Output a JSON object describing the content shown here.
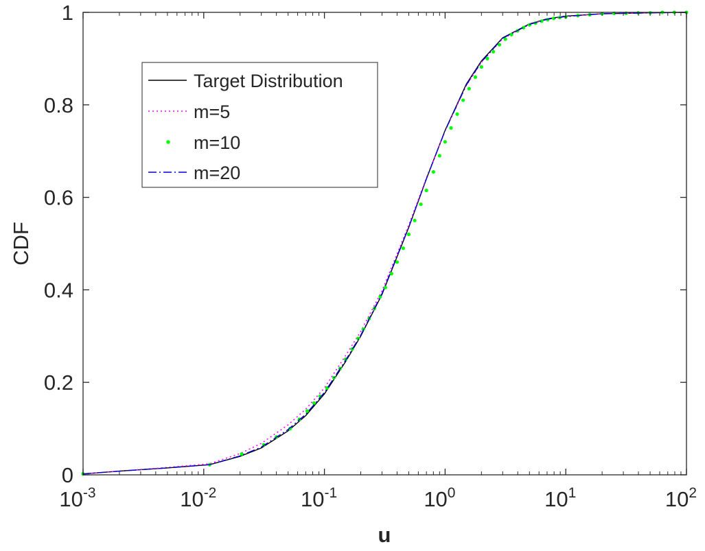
{
  "chart_data": {
    "type": "line",
    "xlabel": "u",
    "ylabel": "CDF",
    "xscale": "log",
    "xlim": [
      0.001,
      100
    ],
    "ylim": [
      0,
      1
    ],
    "x_ticks": [
      {
        "value": 0.001,
        "base": "10",
        "exp": "-3"
      },
      {
        "value": 0.01,
        "base": "10",
        "exp": "-2"
      },
      {
        "value": 0.1,
        "base": "10",
        "exp": "-1"
      },
      {
        "value": 1,
        "base": "10",
        "exp": "0"
      },
      {
        "value": 10,
        "base": "10",
        "exp": "1"
      },
      {
        "value": 100,
        "base": "10",
        "exp": "2"
      }
    ],
    "y_ticks": [
      {
        "value": 0,
        "label": "0"
      },
      {
        "value": 0.2,
        "label": "0.2"
      },
      {
        "value": 0.4,
        "label": "0.4"
      },
      {
        "value": 0.6,
        "label": "0.6"
      },
      {
        "value": 0.8,
        "label": "0.8"
      },
      {
        "value": 1,
        "label": "1"
      }
    ],
    "grid": false,
    "legend_position": "top-left",
    "series": [
      {
        "name": "Target Distribution",
        "style": "solid",
        "color": "#000000",
        "x": [
          0.001,
          0.002,
          0.005,
          0.0112,
          0.02,
          0.03,
          0.05,
          0.07,
          0.1,
          0.15,
          0.2,
          0.3,
          0.5,
          0.7,
          1,
          1.5,
          2,
          3,
          5,
          7,
          10,
          20,
          50,
          100
        ],
        "y": [
          0.002,
          0.008,
          0.015,
          0.022,
          0.04,
          0.058,
          0.095,
          0.128,
          0.175,
          0.245,
          0.3,
          0.39,
          0.535,
          0.64,
          0.745,
          0.845,
          0.895,
          0.945,
          0.975,
          0.986,
          0.992,
          0.997,
          0.999,
          1.0
        ]
      },
      {
        "name": "m=5",
        "style": "dotted",
        "color": "#ff00ff",
        "x": [
          0.001,
          0.002,
          0.005,
          0.0112,
          0.02,
          0.03,
          0.05,
          0.07,
          0.1,
          0.15,
          0.2,
          0.3,
          0.5,
          0.7,
          1,
          1.5,
          2,
          3,
          5,
          7,
          10,
          20,
          50,
          100
        ],
        "y": [
          0.002,
          0.008,
          0.016,
          0.024,
          0.046,
          0.068,
          0.108,
          0.142,
          0.188,
          0.258,
          0.31,
          0.398,
          0.54,
          0.642,
          0.744,
          0.842,
          0.892,
          0.943,
          0.974,
          0.985,
          0.991,
          0.997,
          0.999,
          1.0
        ]
      },
      {
        "name": "m=10",
        "style": "markers",
        "color": "#00ff00",
        "x": [
          0.001,
          0.0112,
          0.0206,
          0.0314,
          0.04,
          0.052,
          0.062,
          0.072,
          0.082,
          0.092,
          0.105,
          0.12,
          0.135,
          0.15,
          0.17,
          0.19,
          0.21,
          0.235,
          0.26,
          0.29,
          0.32,
          0.36,
          0.4,
          0.45,
          0.5,
          0.56,
          0.63,
          0.7,
          0.8,
          0.9,
          1,
          1.12,
          1.26,
          1.41,
          1.58,
          1.78,
          2,
          2.24,
          2.51,
          2.82,
          3.16,
          3.55,
          3.98,
          4.47,
          5.01,
          5.62,
          6.31,
          7.08,
          7.94,
          8.91,
          10,
          12.6,
          15.8,
          20,
          25.1,
          31.6,
          39.8,
          50.1,
          63.1,
          79.4,
          100
        ],
        "y": [
          0.002,
          0.022,
          0.045,
          0.065,
          0.082,
          0.1,
          0.12,
          0.138,
          0.155,
          0.17,
          0.188,
          0.21,
          0.23,
          0.25,
          0.272,
          0.295,
          0.315,
          0.338,
          0.36,
          0.385,
          0.405,
          0.435,
          0.46,
          0.49,
          0.52,
          0.55,
          0.585,
          0.615,
          0.655,
          0.69,
          0.72,
          0.75,
          0.78,
          0.81,
          0.835,
          0.86,
          0.882,
          0.9,
          0.915,
          0.93,
          0.942,
          0.952,
          0.96,
          0.967,
          0.973,
          0.977,
          0.981,
          0.984,
          0.987,
          0.989,
          0.99,
          0.993,
          0.995,
          0.997,
          0.998,
          0.998,
          0.999,
          0.999,
          1.0,
          1.0,
          1.0
        ]
      },
      {
        "name": "m=20",
        "style": "dashdot",
        "color": "#0000cc",
        "x": [
          0.001,
          0.002,
          0.005,
          0.0112,
          0.02,
          0.03,
          0.05,
          0.07,
          0.1,
          0.15,
          0.2,
          0.3,
          0.5,
          0.7,
          1,
          1.5,
          2,
          3,
          5,
          7,
          10,
          20,
          50,
          100
        ],
        "y": [
          0.002,
          0.008,
          0.015,
          0.022,
          0.041,
          0.06,
          0.098,
          0.131,
          0.178,
          0.248,
          0.302,
          0.392,
          0.536,
          0.64,
          0.744,
          0.843,
          0.893,
          0.944,
          0.974,
          0.985,
          0.991,
          0.997,
          0.999,
          1.0
        ]
      }
    ]
  }
}
